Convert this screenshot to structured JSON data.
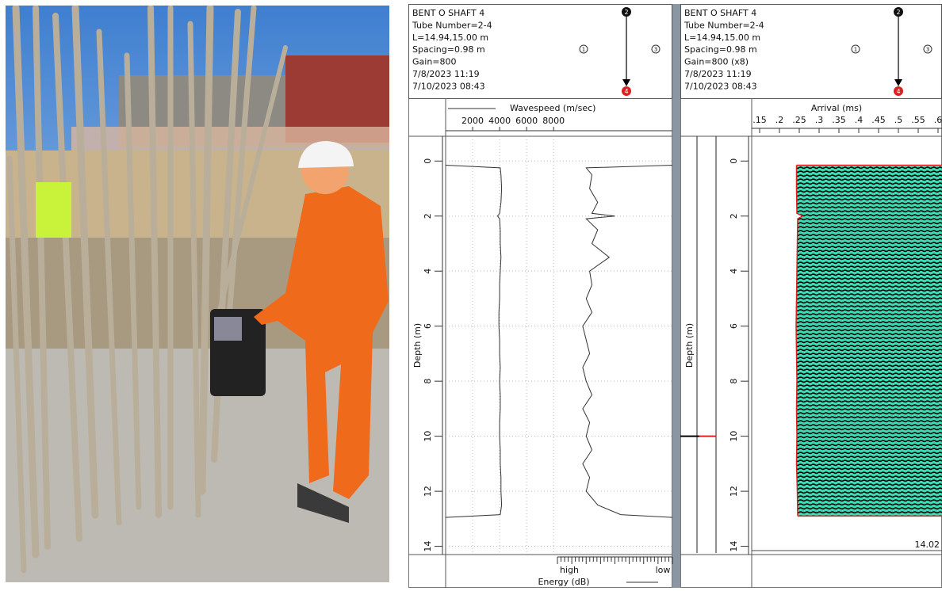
{
  "chart_data": [
    {
      "type": "line",
      "header": [
        "BENT O SHAFT 4",
        "Tube Number=2-4",
        "L=14.94,15.00 m",
        "Spacing=0.98 m",
        "Gain=800",
        "7/8/2023 11:19",
        "7/10/2023 08:43"
      ],
      "tubes": [
        "2",
        "4",
        "1",
        "3"
      ],
      "ylabel": "Depth (m)",
      "ylim": [
        -0.9,
        14.3
      ],
      "yticks": [
        0,
        2,
        4,
        6,
        8,
        10,
        12,
        14
      ],
      "xlim": [
        0,
        16800
      ],
      "xticks": [
        2000,
        4000,
        6000,
        8000
      ],
      "x2lim": [
        0,
        100
      ],
      "x2_end_labels": [
        "high",
        "low"
      ],
      "grid": true,
      "y": [
        0.15,
        0.25,
        0.5,
        1,
        1.5,
        1.9,
        2,
        2.1,
        2.5,
        3,
        3.5,
        4,
        4.5,
        5,
        5.5,
        6,
        6.5,
        7,
        7.5,
        8,
        8.5,
        9,
        9.5,
        10,
        10.5,
        11,
        11.5,
        12,
        12.5,
        12.85,
        12.95
      ],
      "series": [
        {
          "name": "Wavespeed (m/sec)",
          "color": "#333333",
          "values": [
            0,
            4050,
            4100,
            4150,
            4100,
            4000,
            3850,
            4000,
            4050,
            4050,
            4100,
            4050,
            4000,
            4000,
            3950,
            3950,
            4000,
            4000,
            4050,
            4000,
            4050,
            4050,
            4000,
            4000,
            4050,
            4050,
            4100,
            4100,
            4150,
            4050,
            0
          ]
        },
        {
          "name": "Energy (dB)",
          "color": "#333333",
          "axis": "x2",
          "values": [
            100,
            25,
            30,
            28,
            35,
            30,
            50,
            25,
            35,
            30,
            45,
            28,
            30,
            25,
            30,
            22,
            25,
            28,
            22,
            25,
            30,
            22,
            28,
            25,
            30,
            22,
            28,
            25,
            35,
            55,
            100
          ]
        }
      ]
    },
    {
      "type": "waterfall",
      "header": [
        "BENT O SHAFT 4",
        "Tube Number=2-4",
        "L=14.94,15.00 m",
        "Spacing=0.98 m",
        "Gain=800 (x8)",
        "7/8/2023 11:19",
        "7/10/2023 08:43"
      ],
      "tubes": [
        "2",
        "4",
        "1",
        "3"
      ],
      "ylabel": "Depth (m)",
      "ylim": [
        -0.9,
        14.3
      ],
      "yticks": [
        0,
        2,
        4,
        6,
        8,
        10,
        12,
        14
      ],
      "xlabel": "Arrival (ms)",
      "xlim": [
        0.13,
        0.61
      ],
      "xticks": [
        {
          "value": 0.15,
          "label": ".15"
        },
        {
          "value": 0.2,
          "label": ".2"
        },
        {
          "value": 0.25,
          "label": ".25"
        },
        {
          "value": 0.3,
          "label": ".3"
        },
        {
          "value": 0.35,
          "label": ".35"
        },
        {
          "value": 0.4,
          "label": ".4"
        },
        {
          "value": 0.45,
          "label": ".45"
        },
        {
          "value": 0.5,
          "label": ".5"
        },
        {
          "value": 0.55,
          "label": ".55"
        },
        {
          "value": 0.6,
          "label": ".6"
        }
      ],
      "fill_color": "#3ddbb4",
      "marker_depth": 10,
      "annotation": "14.02",
      "y": [
        0.15,
        1,
        1.9,
        2,
        2.1,
        3,
        4,
        5,
        6,
        7,
        8,
        9,
        10,
        11,
        12,
        12.9
      ],
      "series": [
        {
          "name": "First arrival",
          "color": "#e02020",
          "values": [
            0.243,
            0.243,
            0.244,
            0.258,
            0.246,
            0.245,
            0.244,
            0.243,
            0.242,
            0.243,
            0.244,
            0.243,
            0.244,
            0.243,
            0.245,
            0.246
          ]
        }
      ]
    }
  ]
}
